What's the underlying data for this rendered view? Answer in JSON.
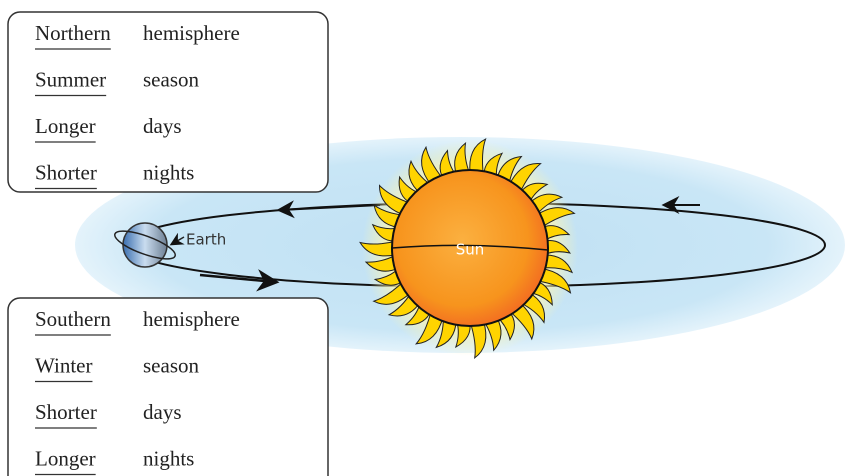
{
  "boxes": [
    {
      "rows": [
        [
          "Northern",
          "hemisphere"
        ],
        [
          "Summer",
          "season"
        ],
        [
          "Longer",
          "days"
        ],
        [
          "Shorter",
          "nights"
        ]
      ]
    },
    {
      "rows": [
        [
          "Southern",
          "hemisphere"
        ],
        [
          "Winter",
          "season"
        ],
        [
          "Shorter",
          "days"
        ],
        [
          "Longer",
          "nights"
        ]
      ]
    }
  ],
  "labels": {
    "sun": "Sun",
    "earth": "Earth"
  }
}
